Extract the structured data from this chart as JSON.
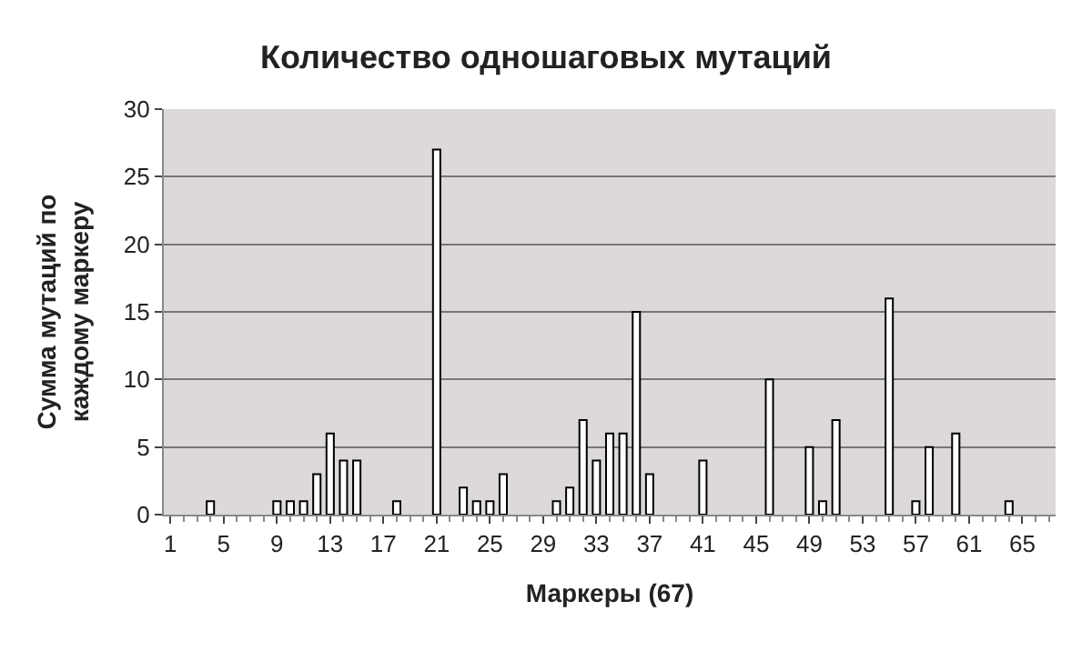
{
  "chart_data": {
    "type": "bar",
    "title": "Количество одношаговых мутаций",
    "xlabel": "Маркеры (67)",
    "ylabel": "Сумма мутаций по\nкаждому маркеру",
    "categories": [
      "1",
      null,
      null,
      null,
      "5",
      null,
      null,
      null,
      "9",
      null,
      null,
      null,
      "13",
      null,
      null,
      null,
      "17",
      null,
      null,
      null,
      "21",
      null,
      null,
      null,
      "25",
      null,
      null,
      null,
      "29",
      null,
      null,
      null,
      "33",
      null,
      null,
      null,
      "37",
      null,
      null,
      null,
      "41",
      null,
      null,
      null,
      "45",
      null,
      null,
      null,
      "49",
      null,
      null,
      null,
      "53",
      null,
      null,
      null,
      "57",
      null,
      null,
      null,
      "61",
      null,
      null,
      null,
      "65",
      null,
      null
    ],
    "series": [
      {
        "color": "#ffffff",
        "values": [
          0,
          0,
          0,
          1,
          0,
          0,
          0,
          0,
          1,
          1,
          1,
          3,
          6,
          4,
          4,
          0,
          0,
          1,
          0,
          0,
          27,
          0,
          2,
          1,
          1,
          3,
          0,
          0,
          0,
          1,
          2,
          7,
          4,
          6,
          6,
          15,
          3,
          0,
          0,
          0,
          4,
          0,
          0,
          0,
          0,
          10,
          0,
          0,
          5,
          1,
          7,
          0,
          0,
          0,
          16,
          0,
          1,
          5,
          0,
          6,
          0,
          0,
          0,
          1,
          0,
          0,
          0
        ]
      }
    ],
    "ylim": [
      0,
      30
    ],
    "yticks": [
      0,
      5,
      10,
      15,
      20,
      25,
      30
    ],
    "grid": "y",
    "legend": false
  }
}
